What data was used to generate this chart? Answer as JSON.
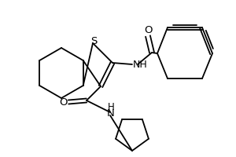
{
  "bg_color": "#ffffff",
  "line_color": "#000000",
  "lw": 1.3,
  "figsize": [
    3.0,
    2.0
  ],
  "dpi": 100,
  "xlim": [
    0,
    300
  ],
  "ylim": [
    0,
    200
  ],
  "S_label": "S",
  "O1_label": "O",
  "O2_label": "O",
  "NH1_label": "NH",
  "NH2_H_label": "H",
  "NH2_N_label": "N",
  "font_size": 9.5
}
